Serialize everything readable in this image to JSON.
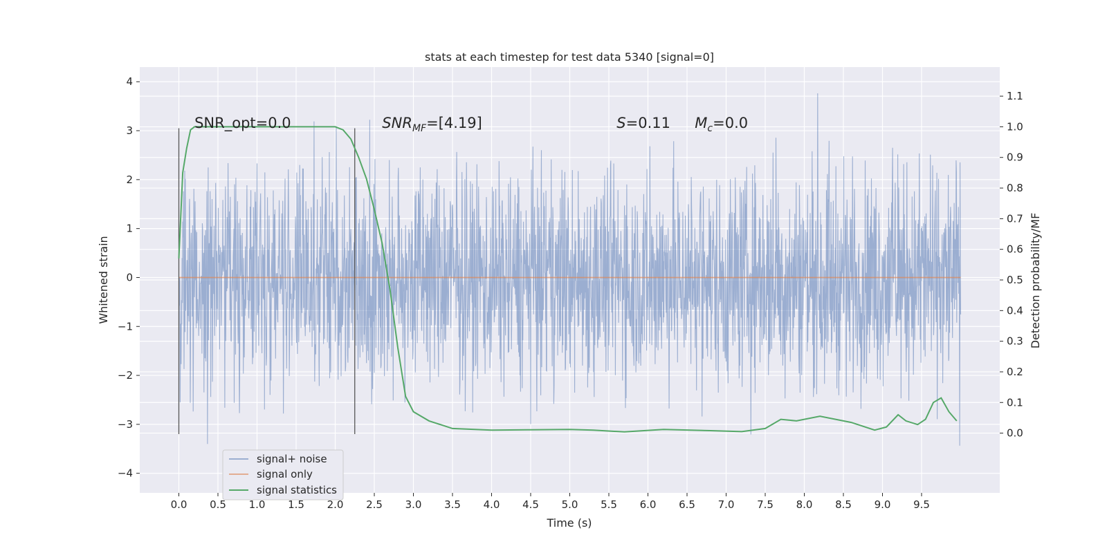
{
  "chart_data": {
    "type": "line",
    "title": "stats at each timestep for test data 5340 [signal=0]",
    "xlabel": "Time (s)",
    "ylabel": "Whitened strain",
    "y2label": "Detection probability/MF",
    "xlim": [
      -0.5,
      10.5
    ],
    "ylim": [
      -4.4,
      4.3
    ],
    "y2lim": [
      -0.195,
      1.195
    ],
    "x_ticks": [
      "0.0",
      "0.5",
      "1.0",
      "1.5",
      "2.0",
      "2.5",
      "3.0",
      "3.5",
      "4.0",
      "4.5",
      "5.0",
      "5.5",
      "6.0",
      "6.5",
      "7.0",
      "7.5",
      "8.0",
      "8.5",
      "9.0",
      "9.5"
    ],
    "y_ticks": [
      "−4",
      "−3",
      "−2",
      "−1",
      "0",
      "1",
      "2",
      "3",
      "4"
    ],
    "y2_ticks": [
      "0.0",
      "0.1",
      "0.2",
      "0.3",
      "0.4",
      "0.5",
      "0.6",
      "0.7",
      "0.8",
      "0.9",
      "1.0",
      "1.1"
    ],
    "grid": true,
    "legend_position": "lower-left",
    "series": [
      {
        "name": "signal+ noise",
        "color": "#4c72b0",
        "kind": "noise",
        "x_range": [
          0,
          10
        ],
        "envelope": [
          -3.6,
          3.9
        ]
      },
      {
        "name": "signal only",
        "color": "#dd8452",
        "kind": "line",
        "x": [
          0,
          10
        ],
        "y": [
          0,
          0
        ]
      },
      {
        "name": "signal statistics",
        "color": "#55a868",
        "kind": "line",
        "axis": "right",
        "x": [
          0.0,
          0.05,
          0.1,
          0.15,
          0.2,
          0.3,
          0.5,
          1.0,
          1.5,
          1.9,
          2.0,
          2.1,
          2.2,
          2.3,
          2.4,
          2.5,
          2.6,
          2.7,
          2.8,
          2.9,
          3.0,
          3.2,
          3.5,
          4.0,
          4.5,
          5.0,
          5.3,
          5.7,
          6.2,
          6.8,
          7.2,
          7.5,
          7.7,
          7.9,
          8.2,
          8.6,
          8.9,
          9.05,
          9.2,
          9.3,
          9.45,
          9.55,
          9.65,
          9.75,
          9.85,
          9.95
        ],
        "y": [
          0.57,
          0.85,
          0.93,
          0.99,
          1.0,
          1.0,
          1.0,
          1.0,
          1.0,
          1.0,
          1.0,
          0.99,
          0.96,
          0.9,
          0.83,
          0.73,
          0.62,
          0.47,
          0.28,
          0.12,
          0.07,
          0.04,
          0.015,
          0.01,
          0.011,
          0.012,
          0.01,
          0.004,
          0.012,
          0.008,
          0.005,
          0.015,
          0.045,
          0.04,
          0.055,
          0.035,
          0.01,
          0.02,
          0.06,
          0.04,
          0.028,
          0.045,
          0.1,
          0.115,
          0.07,
          0.04
        ]
      }
    ],
    "vlines": [
      0.0,
      2.25
    ],
    "annotations": [
      {
        "text": "SNR_opt=0.0",
        "x": 0.2
      },
      {
        "text": "SNR",
        "sub": "MF",
        "rest": "=[4.19]",
        "x": 2.6
      },
      {
        "text": "S",
        "rest": "=0.11",
        "x": 5.6
      },
      {
        "text": "M",
        "sub": "c",
        "rest": "=0.0",
        "x": 6.6
      }
    ]
  }
}
